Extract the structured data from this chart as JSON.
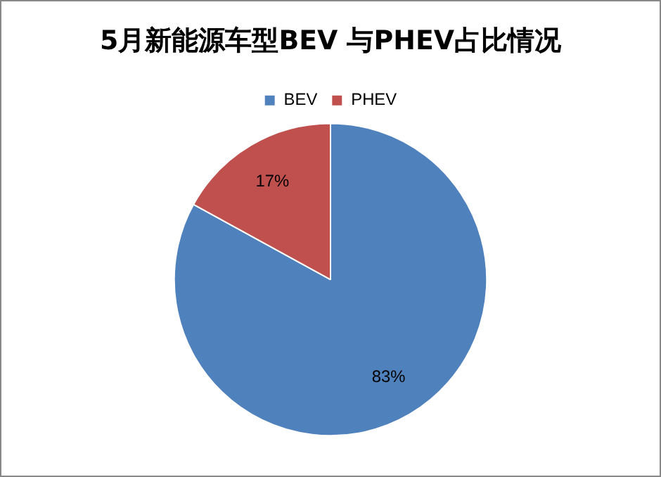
{
  "chart_data": {
    "type": "pie",
    "title": "5月新能源车型BEV 与PHEV占比情况",
    "categories": [
      "BEV",
      "PHEV"
    ],
    "values": [
      83,
      17
    ],
    "colors": [
      "#4f81bd",
      "#c0504d"
    ],
    "value_labels": [
      "83%",
      "17%"
    ],
    "legend": "top"
  }
}
